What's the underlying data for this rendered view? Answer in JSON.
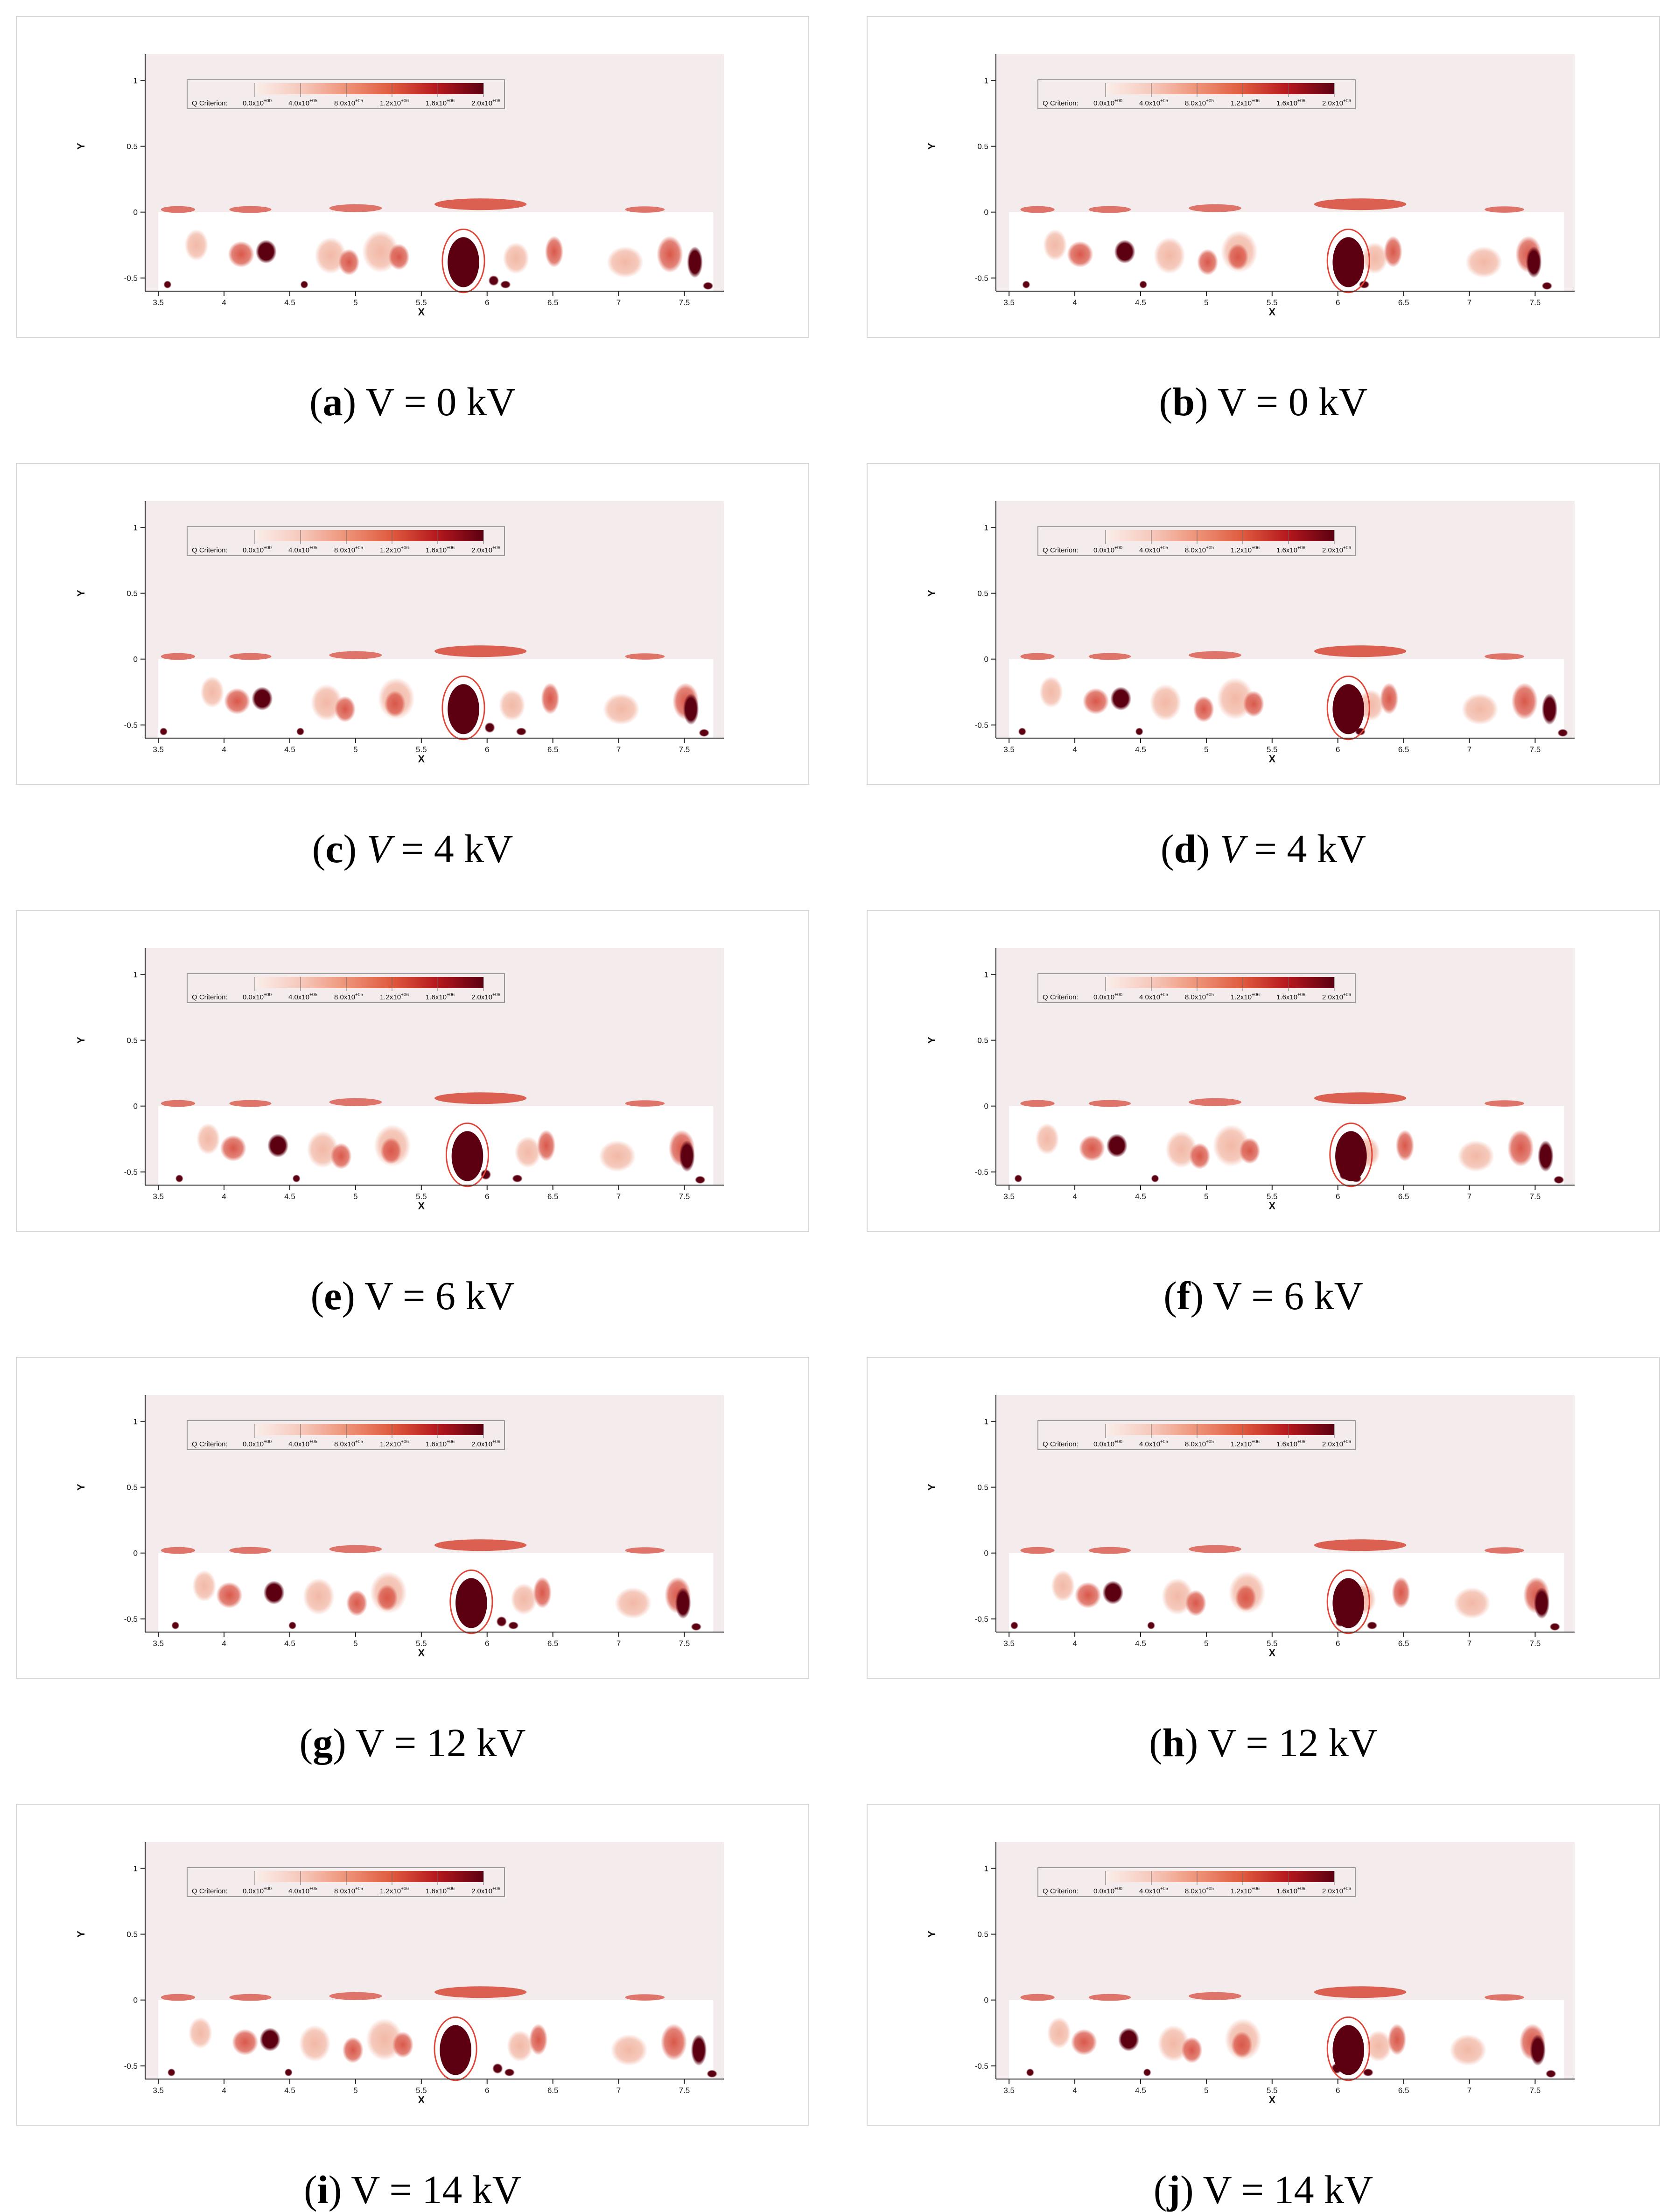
{
  "figure": {
    "x_axis_label": "X",
    "y_axis_label": "Y",
    "x_ticks": [
      "3.5",
      "4",
      "4.5",
      "5",
      "5.5",
      "6",
      "6.5",
      "7",
      "7.5"
    ],
    "y_ticks": [
      "1",
      "0.5",
      "0",
      "-0.5"
    ],
    "x_range": [
      3.4,
      7.8
    ],
    "y_range": [
      -0.6,
      1.2
    ],
    "legend": {
      "title": "Q Criterion:",
      "labels": [
        "0.0x10",
        "4.0x10",
        "8.0x10",
        "1.2x10",
        "1.6x10",
        "2.0x10"
      ],
      "exponents": [
        "+00",
        "+05",
        "+05",
        "+06",
        "+06",
        "+06"
      ],
      "colors": [
        "#fbeeea",
        "#f6c9bc",
        "#ee9378",
        "#df5a3e",
        "#b5171d",
        "#5c0011"
      ]
    },
    "colors": {
      "background_field": "#f4ecec",
      "vortex_light": "#f2b8a6",
      "vortex_mid": "#d9584a",
      "vortex_dark": "#5c0011",
      "highlight_circle": "#e0463a"
    }
  },
  "panels": [
    {
      "label": "a",
      "equals": " = ",
      "value": "0 kV",
      "v": "V",
      "italic": false,
      "circle_x": 5.82
    },
    {
      "label": "b",
      "equals": " = ",
      "value": "0 kV",
      "v": "V",
      "italic": false,
      "circle_x": 6.08
    },
    {
      "label": "c",
      "equals": " = ",
      "value": "4 kV",
      "v": "V",
      "italic": true,
      "circle_x": 5.82
    },
    {
      "label": "d",
      "equals": " = ",
      "value": "4 kV",
      "v": "V",
      "italic": true,
      "circle_x": 6.08
    },
    {
      "label": "e",
      "equals": " = ",
      "value": "6 kV",
      "v": "V",
      "italic": false,
      "circle_x": 5.85
    },
    {
      "label": "f",
      "equals": " = ",
      "value": "6 kV",
      "v": "V",
      "italic": false,
      "circle_x": 6.1
    },
    {
      "label": "g",
      "equals": " = ",
      "value": "12 kV",
      "v": "V",
      "italic": false,
      "circle_x": 5.88
    },
    {
      "label": "h",
      "equals": " = ",
      "value": "12 kV",
      "v": "V",
      "italic": false,
      "circle_x": 6.08
    },
    {
      "label": "i",
      "equals": " = ",
      "value": "14 kV",
      "v": "V",
      "italic": false,
      "circle_x": 5.76
    },
    {
      "label": "j",
      "equals": " = ",
      "value": "14 kV",
      "v": "V",
      "italic": false,
      "circle_x": 6.08
    }
  ]
}
